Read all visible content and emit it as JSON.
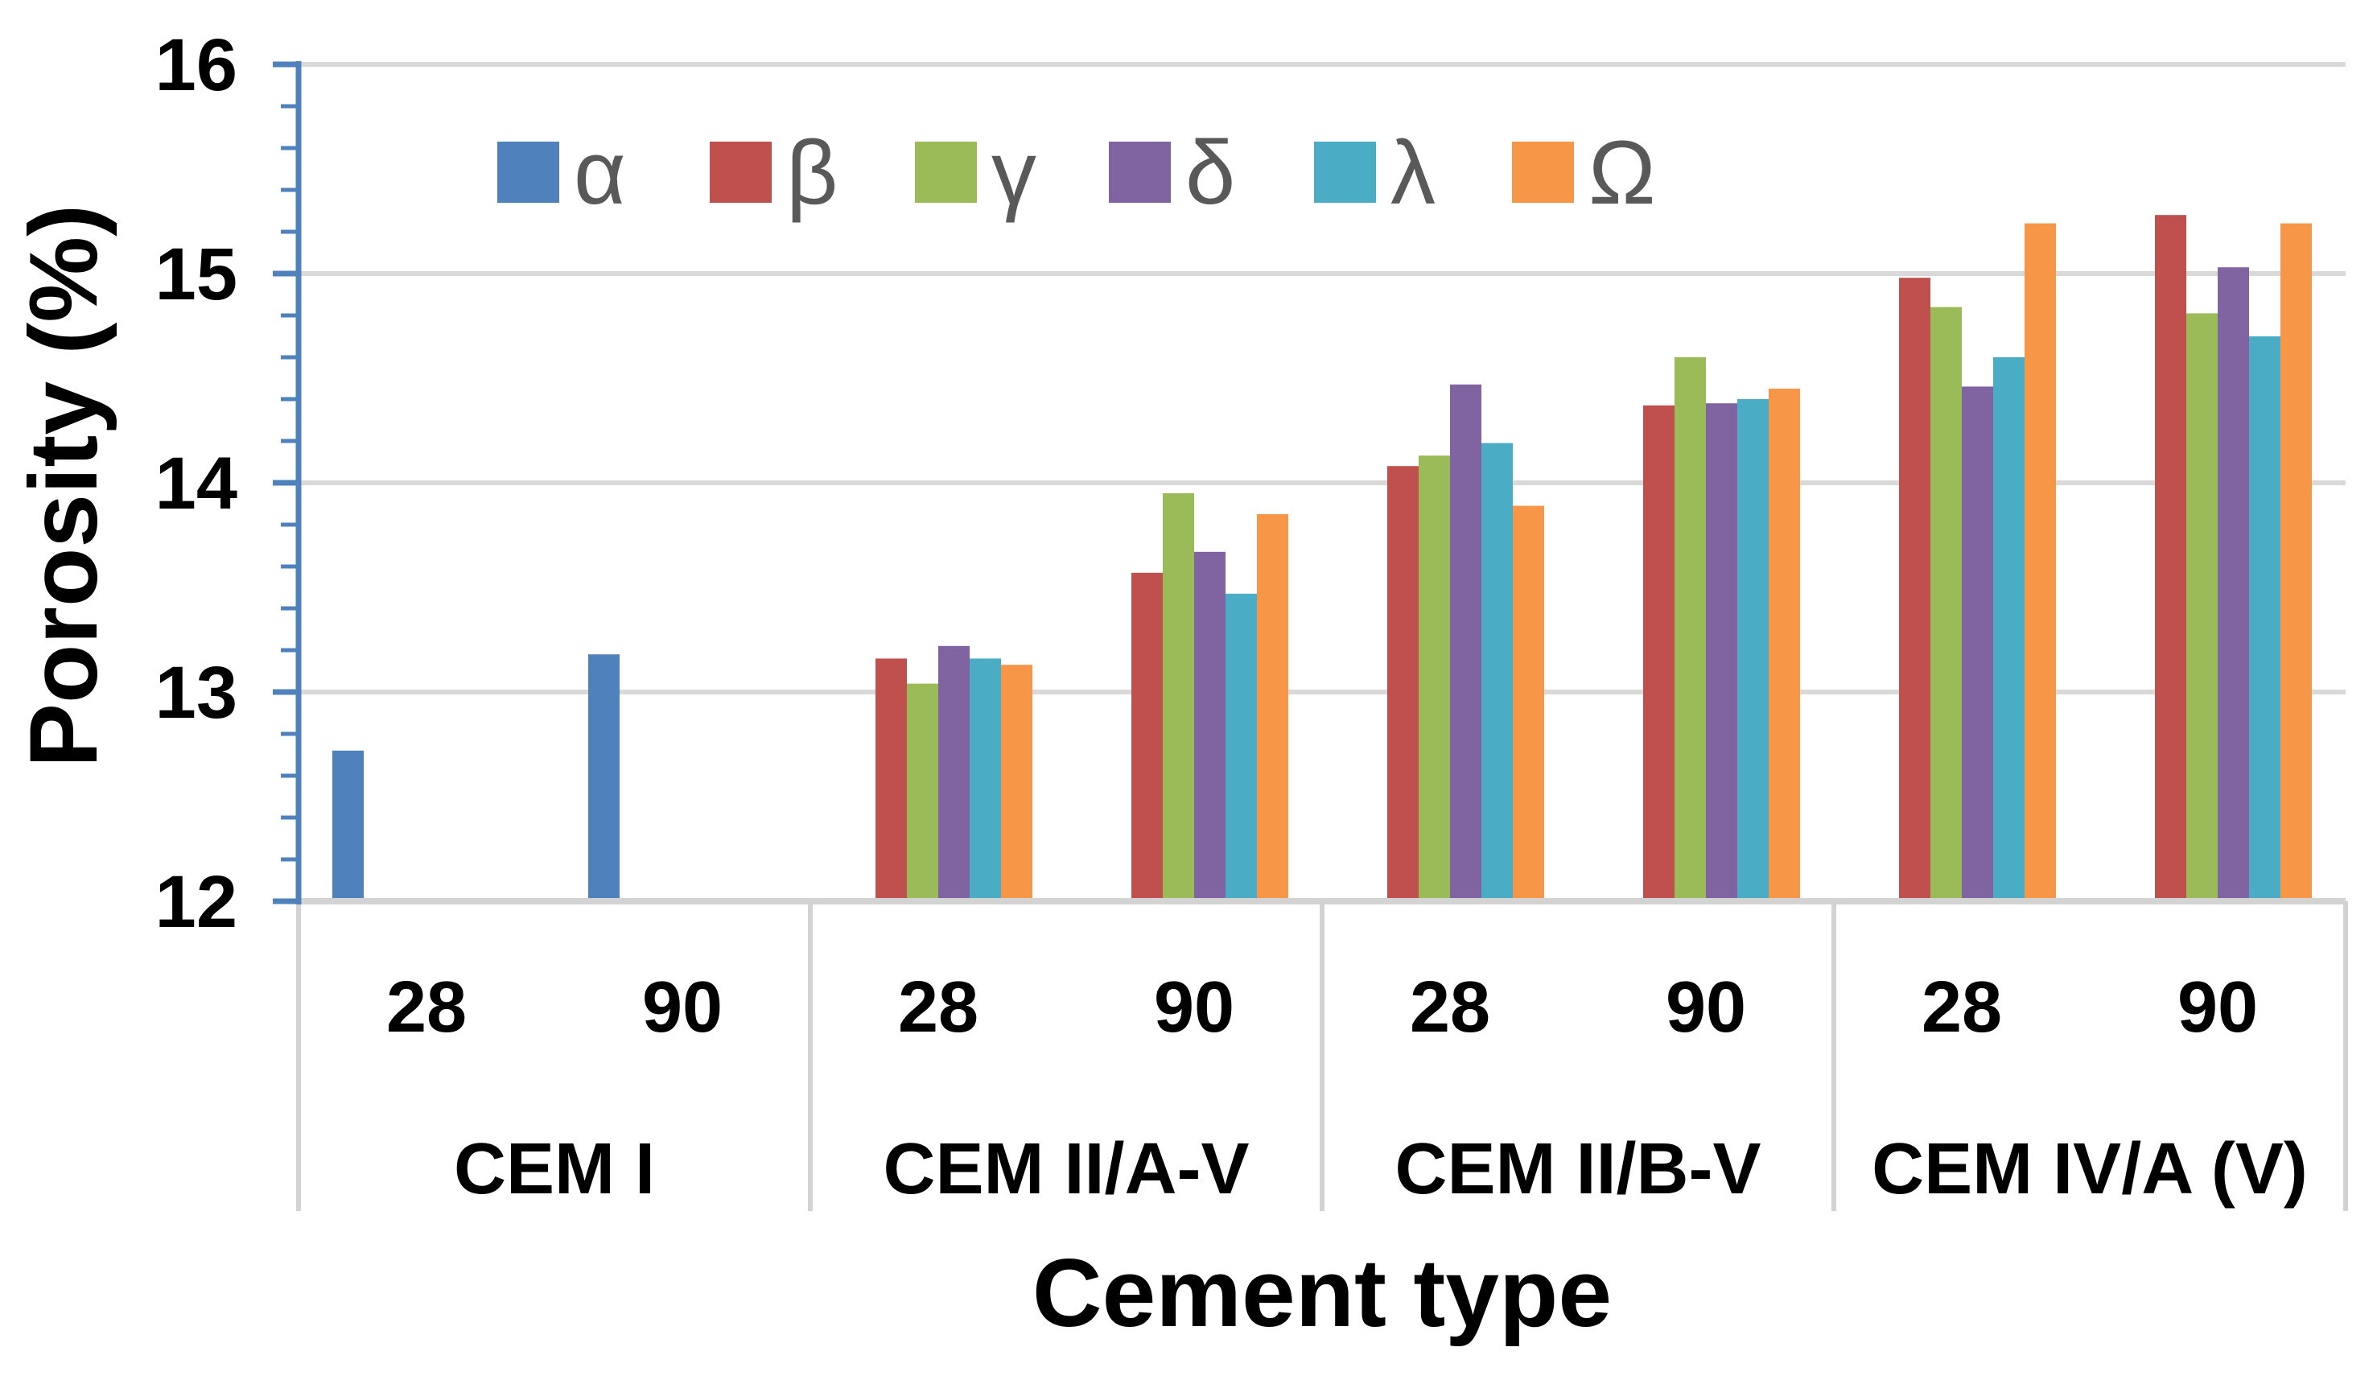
{
  "chart_data": {
    "type": "bar",
    "title": "",
    "xlabel": "Cement type",
    "ylabel": "Porosity (%)",
    "ylim": [
      12,
      16
    ],
    "y_major_ticks": [
      "16",
      "15",
      "14",
      "13",
      "12"
    ],
    "y_minor_step": 0.2,
    "grid": "horizontal-major-on",
    "legend_position": "top-inside-row",
    "series": [
      {
        "name": "α",
        "color": "#4F81BD"
      },
      {
        "name": "β",
        "color": "#C0504D"
      },
      {
        "name": "γ",
        "color": "#9BBB59"
      },
      {
        "name": "δ",
        "color": "#8064A2"
      },
      {
        "name": "λ",
        "color": "#4BACC6"
      },
      {
        "name": "Ω",
        "color": "#F79646"
      }
    ],
    "groups": [
      {
        "label": "CEM I",
        "subgroups": [
          {
            "label": "28",
            "values": [
              12.72,
              null,
              null,
              null,
              null,
              null
            ]
          },
          {
            "label": "90",
            "values": [
              13.18,
              null,
              null,
              null,
              null,
              null
            ]
          }
        ]
      },
      {
        "label": "CEM II/A-V",
        "subgroups": [
          {
            "label": "28",
            "values": [
              null,
              13.16,
              13.04,
              13.22,
              13.16,
              13.13
            ]
          },
          {
            "label": "90",
            "values": [
              null,
              13.57,
              13.95,
              13.67,
              13.47,
              13.85
            ]
          }
        ]
      },
      {
        "label": "CEM II/B-V",
        "subgroups": [
          {
            "label": "28",
            "values": [
              null,
              14.08,
              14.13,
              14.47,
              14.19,
              13.89
            ]
          },
          {
            "label": "90",
            "values": [
              null,
              14.37,
              14.6,
              14.38,
              14.4,
              14.45
            ]
          }
        ]
      },
      {
        "label": "CEM IV/A (V)",
        "subgroups": [
          {
            "label": "28",
            "values": [
              null,
              14.98,
              14.84,
              14.46,
              14.6,
              15.24
            ]
          },
          {
            "label": "90",
            "values": [
              null,
              15.28,
              14.81,
              15.03,
              14.7,
              15.24
            ]
          }
        ]
      }
    ]
  },
  "styles": {
    "background": "#FFFFFF",
    "axis_color": "#4F81BD",
    "gridline_color": "#D9D9D9",
    "separator_color": "#D3D3D3",
    "label_color": "#000000",
    "legend_text_color": "#595959"
  }
}
